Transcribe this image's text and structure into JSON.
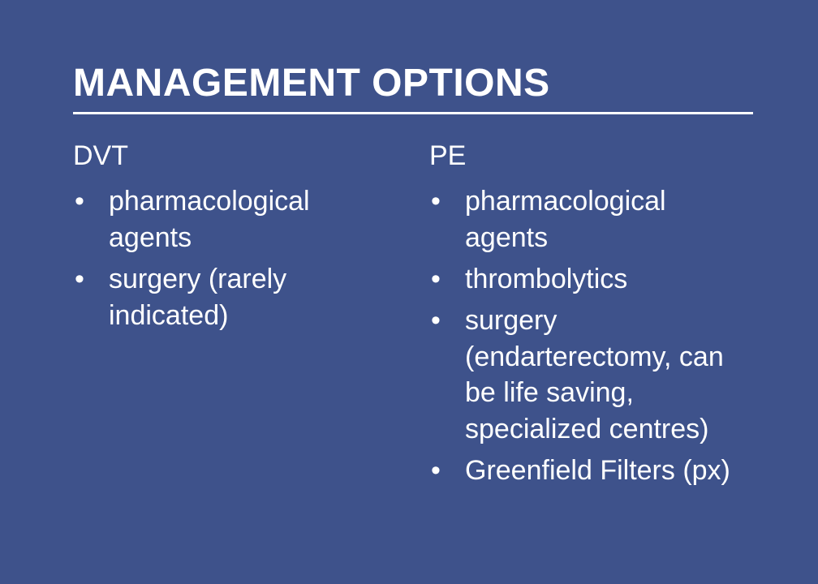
{
  "background_color": "#3e528b",
  "text_color": "#ffffff",
  "title_fontsize": 48,
  "heading_fontsize": 34,
  "body_fontsize": 34,
  "title": "MANAGEMENT OPTIONS",
  "left": {
    "heading": "DVT",
    "bullets": [
      "pharmacological agents",
      "surgery (rarely indicated)"
    ]
  },
  "right": {
    "heading": "PE",
    "bullets": [
      "pharmacological agents",
      "thrombolytics",
      "surgery (endarterectomy, can be life saving, specialized centres)",
      "Greenfield Filters (px)"
    ]
  }
}
